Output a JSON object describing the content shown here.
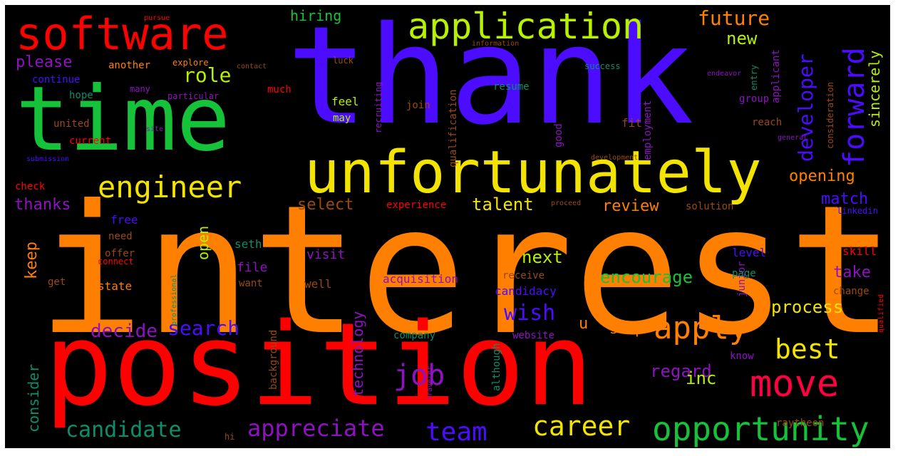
{
  "palette": {
    "red": "#ff0000",
    "orange": "#ff7f00",
    "yellow": "#f2e400",
    "lime": "#b7f000",
    "green": "#15c23a",
    "blue": "#4b0cff",
    "purple": "#8e12c2",
    "teal": "#0c8e6a",
    "brown": "#9a4a10",
    "crimson": "#ff0040"
  },
  "words": [
    {
      "text": "interest",
      "color": "orange"
    },
    {
      "text": "thank",
      "color": "blue"
    },
    {
      "text": "position",
      "color": "red"
    },
    {
      "text": "time",
      "color": "green"
    },
    {
      "text": "unfortunately",
      "color": "yellow"
    },
    {
      "text": "software",
      "color": "red"
    },
    {
      "text": "application",
      "color": "lime"
    },
    {
      "text": "engineer",
      "color": "yellow"
    },
    {
      "text": "forward",
      "color": "blue"
    },
    {
      "text": "opportunity",
      "color": "green"
    },
    {
      "text": "move",
      "color": "crimson"
    },
    {
      "text": "apply",
      "color": "orange"
    },
    {
      "text": "best",
      "color": "yellow"
    },
    {
      "text": "job",
      "color": "purple"
    },
    {
      "text": "team",
      "color": "blue"
    },
    {
      "text": "career",
      "color": "yellow"
    },
    {
      "text": "appreciate",
      "color": "purple"
    },
    {
      "text": "candidate",
      "color": "teal"
    },
    {
      "text": "developer",
      "color": "blue"
    },
    {
      "text": "future",
      "color": "orange"
    },
    {
      "text": "role",
      "color": "lime"
    },
    {
      "text": "please",
      "color": "purple"
    },
    {
      "text": "hiring",
      "color": "green"
    },
    {
      "text": "new",
      "color": "lime"
    },
    {
      "text": "sincerely",
      "color": "lime"
    },
    {
      "text": "wish",
      "color": "blue"
    },
    {
      "text": "search",
      "color": "blue"
    },
    {
      "text": "decide",
      "color": "purple"
    },
    {
      "text": "regard",
      "color": "purple"
    },
    {
      "text": "encourage",
      "color": "green"
    },
    {
      "text": "process",
      "color": "yellow"
    },
    {
      "text": "talent",
      "color": "yellow"
    },
    {
      "text": "select",
      "color": "brown"
    },
    {
      "text": "opening",
      "color": "orange"
    },
    {
      "text": "match",
      "color": "blue"
    },
    {
      "text": "review",
      "color": "orange"
    },
    {
      "text": "next",
      "color": "lime"
    },
    {
      "text": "take",
      "color": "purple"
    },
    {
      "text": "thanks",
      "color": "purple"
    },
    {
      "text": "keep",
      "color": "orange"
    },
    {
      "text": "open",
      "color": "lime"
    },
    {
      "text": "inc",
      "color": "lime"
    },
    {
      "text": "step",
      "color": "orange"
    },
    {
      "text": "technology",
      "color": "purple"
    },
    {
      "text": "consider",
      "color": "teal"
    },
    {
      "text": "u",
      "color": "orange"
    },
    {
      "text": "continue",
      "color": "blue"
    },
    {
      "text": "another",
      "color": "orange"
    },
    {
      "text": "explore",
      "color": "orange"
    },
    {
      "text": "hope",
      "color": "teal"
    },
    {
      "text": "many",
      "color": "purple"
    },
    {
      "text": "particular",
      "color": "purple"
    },
    {
      "text": "united",
      "color": "brown"
    },
    {
      "text": "current",
      "color": "red"
    },
    {
      "text": "much",
      "color": "red"
    },
    {
      "text": "luck",
      "color": "brown"
    },
    {
      "text": "feel",
      "color": "lime"
    },
    {
      "text": "may",
      "color": "lime"
    },
    {
      "text": "join",
      "color": "brown"
    },
    {
      "text": "resume",
      "color": "teal"
    },
    {
      "text": "success",
      "color": "teal"
    },
    {
      "text": "information",
      "color": "brown"
    },
    {
      "text": "qualification",
      "color": "brown"
    },
    {
      "text": "recruiting",
      "color": "purple"
    },
    {
      "text": "employment",
      "color": "purple"
    },
    {
      "text": "applicant",
      "color": "purple"
    },
    {
      "text": "entry",
      "color": "teal"
    },
    {
      "text": "group",
      "color": "purple"
    },
    {
      "text": "reach",
      "color": "brown"
    },
    {
      "text": "fit",
      "color": "brown"
    },
    {
      "text": "good",
      "color": "purple"
    },
    {
      "text": "consideration",
      "color": "brown"
    },
    {
      "text": "endeavor",
      "color": "purple"
    },
    {
      "text": "free",
      "color": "blue"
    },
    {
      "text": "need",
      "color": "brown"
    },
    {
      "text": "offer",
      "color": "brown"
    },
    {
      "text": "connect",
      "color": "red"
    },
    {
      "text": "get",
      "color": "brown"
    },
    {
      "text": "state",
      "color": "orange"
    },
    {
      "text": "seth",
      "color": "teal"
    },
    {
      "text": "file",
      "color": "purple"
    },
    {
      "text": "want",
      "color": "brown"
    },
    {
      "text": "visit",
      "color": "purple"
    },
    {
      "text": "well",
      "color": "brown"
    },
    {
      "text": "acquisition",
      "color": "purple"
    },
    {
      "text": "receive",
      "color": "brown"
    },
    {
      "text": "candidacy",
      "color": "blue"
    },
    {
      "text": "level",
      "color": "blue"
    },
    {
      "text": "junior",
      "color": "purple"
    },
    {
      "text": "skill",
      "color": "red"
    },
    {
      "text": "page",
      "color": "teal"
    },
    {
      "text": "change",
      "color": "brown"
    },
    {
      "text": "solution",
      "color": "brown"
    },
    {
      "text": "linkedin",
      "color": "blue"
    },
    {
      "text": "experience",
      "color": "red"
    },
    {
      "text": "website",
      "color": "purple"
    },
    {
      "text": "know",
      "color": "purple"
    },
    {
      "text": "raytheon",
      "color": "brown"
    },
    {
      "text": "company",
      "color": "teal"
    },
    {
      "text": "background",
      "color": "brown"
    },
    {
      "text": "although",
      "color": "teal"
    },
    {
      "text": "check",
      "color": "red"
    },
    {
      "text": "site",
      "color": "purple"
    },
    {
      "text": "hi",
      "color": "brown"
    },
    {
      "text": "development",
      "color": "brown"
    },
    {
      "text": "general",
      "color": "purple"
    },
    {
      "text": "qualified",
      "color": "red"
    },
    {
      "text": "proceed",
      "color": "brown"
    },
    {
      "text": "traveler",
      "color": "purple"
    },
    {
      "text": "professional",
      "color": "teal"
    },
    {
      "text": "submission",
      "color": "blue"
    },
    {
      "text": "contact",
      "color": "brown"
    },
    {
      "text": "pursue",
      "color": "red"
    }
  ]
}
